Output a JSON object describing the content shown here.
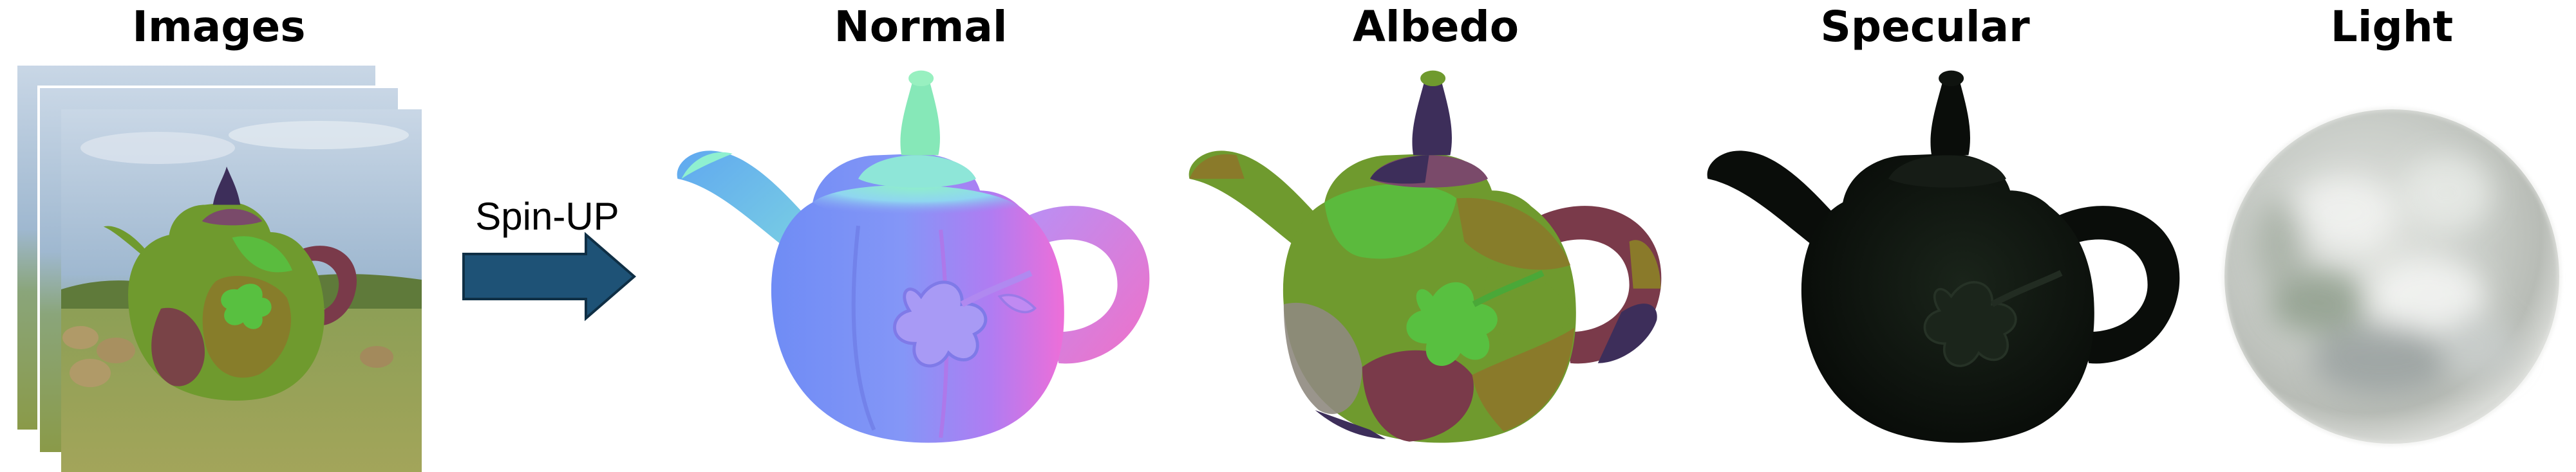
{
  "panels": {
    "images": {
      "title": "Images"
    },
    "normal": {
      "title": "Normal"
    },
    "albedo": {
      "title": "Albedo"
    },
    "specular": {
      "title": "Specular"
    },
    "light": {
      "title": "Light"
    }
  },
  "arrow": {
    "label": "Spin-UP",
    "color": "#1e5276"
  },
  "colors": {
    "albedo_regions": [
      "#6f9a2e",
      "#7a3a4a",
      "#8a7a2a",
      "#3d2e5a",
      "#58c040",
      "#8f8a80"
    ],
    "specular_base": "#0e120e",
    "normal_blue": "#7f86f5",
    "normal_magenta": "#e070f0",
    "normal_green": "#86f0b8"
  }
}
